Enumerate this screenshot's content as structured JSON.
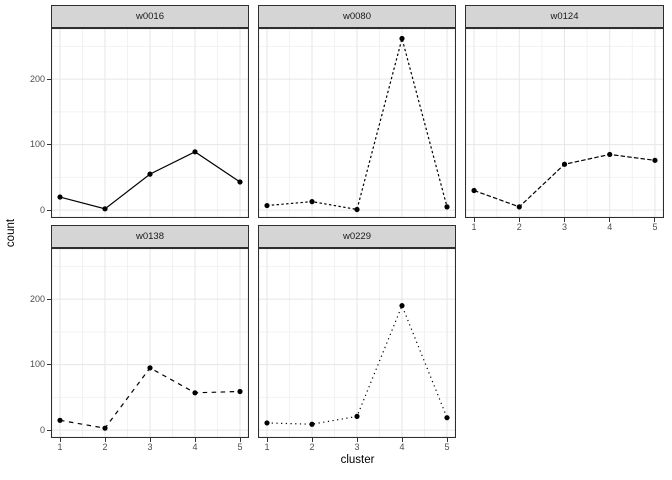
{
  "theme": {
    "strip_bg": "#d5d5d5",
    "strip_border": "#2e2e2e",
    "panel_bg": "#ffffff",
    "panel_border": "#2e2e2e",
    "grid_major": "#e6e6e6",
    "grid_minor": "#f2f2f2",
    "line_color": "#000000",
    "point_color": "#000000",
    "tick_color": "#333333",
    "tick_label_color": "#4d4d4d",
    "axis_title_color": "#000000"
  },
  "chart_data": {
    "type": "line",
    "title": "",
    "xlabel": "cluster",
    "ylabel": "count",
    "x": [
      1,
      2,
      3,
      4,
      5
    ],
    "xlim": [
      0.8,
      5.2
    ],
    "ylim": [
      -12,
      278
    ],
    "yticks": [
      0,
      100,
      200
    ],
    "grid": {
      "y_major": [
        0,
        100,
        200
      ],
      "y_minor": [
        50,
        150,
        250
      ],
      "x_major": [
        1,
        2,
        3,
        4,
        5
      ],
      "x_minor": [
        1.5,
        2.5,
        3.5,
        4.5
      ]
    },
    "legend": "none",
    "facet_layout": {
      "rows": 2,
      "cols": 3
    },
    "facets": [
      {
        "label": "w0016",
        "linetype": "solid",
        "values": [
          20,
          2,
          55,
          89,
          43
        ]
      },
      {
        "label": "w0080",
        "linetype": "dashed-22",
        "values": [
          7,
          13,
          1,
          262,
          5
        ]
      },
      {
        "label": "w0124",
        "linetype": "dashed-42",
        "values": [
          30,
          5,
          70,
          85,
          76
        ]
      },
      {
        "label": "w0138",
        "linetype": "dashed-44",
        "values": [
          15,
          3,
          95,
          57,
          59
        ]
      },
      {
        "label": "w0229",
        "linetype": "dotted",
        "values": [
          11,
          9,
          21,
          190,
          19
        ]
      }
    ]
  }
}
